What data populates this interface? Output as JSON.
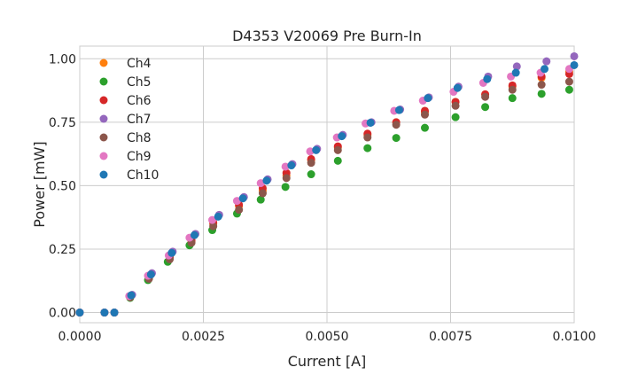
{
  "chart_data": {
    "type": "scatter",
    "title": "D4353 V20069 Pre Burn-In",
    "xlabel": "Current [A]",
    "ylabel": "Power [mW]",
    "xlim": [
      0,
      0.01
    ],
    "ylim": [
      -0.04,
      1.05
    ],
    "xticks": [
      0,
      0.0025,
      0.005,
      0.0075,
      0.01
    ],
    "xtick_labels": [
      "0.0000",
      "0.0025",
      "0.0050",
      "0.0075",
      "0.0100"
    ],
    "yticks": [
      0,
      0.25,
      0.5,
      0.75,
      1.0
    ],
    "ytick_labels": [
      "0.00",
      "0.25",
      "0.50",
      "0.75",
      "1.00"
    ],
    "grid": true,
    "legend_position": "top-left",
    "series": [
      {
        "name": "Ch4",
        "color": "#ff7f0e",
        "x": [
          0,
          0.0005,
          0.0007,
          0.00102,
          0.0014,
          0.00182,
          0.00226,
          0.0027,
          0.00322,
          0.0037,
          0.00418,
          0.00468,
          0.00522,
          0.00582,
          0.0064,
          0.00698,
          0.0076,
          0.0082,
          0.00875,
          0.00934,
          0.0099
        ],
        "y": [
          0,
          0,
          0,
          0.062,
          0.135,
          0.215,
          0.28,
          0.35,
          0.42,
          0.48,
          0.54,
          0.6,
          0.65,
          0.7,
          0.75,
          0.79,
          0.83,
          0.86,
          0.89,
          0.925,
          0.95
        ]
      },
      {
        "name": "Ch5",
        "color": "#2ca02c",
        "x": [
          0,
          0.0005,
          0.0007,
          0.00102,
          0.00138,
          0.00178,
          0.00222,
          0.00268,
          0.00318,
          0.00366,
          0.00416,
          0.00468,
          0.00522,
          0.00582,
          0.0064,
          0.00698,
          0.0076,
          0.0082,
          0.00875,
          0.00934,
          0.0099
        ],
        "y": [
          0,
          0,
          0,
          0.058,
          0.128,
          0.2,
          0.265,
          0.325,
          0.39,
          0.445,
          0.495,
          0.545,
          0.598,
          0.648,
          0.688,
          0.728,
          0.77,
          0.81,
          0.845,
          0.862,
          0.878
        ]
      },
      {
        "name": "Ch6",
        "color": "#d62728",
        "x": [
          0,
          0.0005,
          0.0007,
          0.00102,
          0.0014,
          0.00182,
          0.00226,
          0.0027,
          0.00322,
          0.0037,
          0.00418,
          0.00468,
          0.00522,
          0.00582,
          0.0064,
          0.00698,
          0.0076,
          0.0082,
          0.00875,
          0.00934,
          0.0099
        ],
        "y": [
          0,
          0,
          0,
          0.063,
          0.138,
          0.218,
          0.285,
          0.355,
          0.425,
          0.49,
          0.55,
          0.605,
          0.655,
          0.705,
          0.75,
          0.795,
          0.83,
          0.86,
          0.895,
          0.93,
          0.94
        ]
      },
      {
        "name": "Ch7",
        "color": "#9467bd",
        "x": [
          0,
          0.0005,
          0.0007,
          0.00106,
          0.00146,
          0.00188,
          0.00234,
          0.00282,
          0.00332,
          0.0038,
          0.0043,
          0.0048,
          0.00532,
          0.0059,
          0.00648,
          0.00706,
          0.00766,
          0.00826,
          0.00884,
          0.00944,
          0.01
        ],
        "y": [
          0,
          0,
          0,
          0.07,
          0.155,
          0.24,
          0.31,
          0.385,
          0.455,
          0.525,
          0.585,
          0.645,
          0.7,
          0.75,
          0.8,
          0.848,
          0.89,
          0.93,
          0.97,
          0.99,
          1.01
        ]
      },
      {
        "name": "Ch8",
        "color": "#8c564b",
        "x": [
          0,
          0.0005,
          0.0007,
          0.00102,
          0.0014,
          0.00182,
          0.00226,
          0.0027,
          0.00322,
          0.0037,
          0.00418,
          0.00468,
          0.00522,
          0.00582,
          0.0064,
          0.00698,
          0.0076,
          0.0082,
          0.00875,
          0.00934,
          0.0099
        ],
        "y": [
          0,
          0,
          0,
          0.06,
          0.133,
          0.21,
          0.275,
          0.34,
          0.405,
          0.47,
          0.53,
          0.59,
          0.64,
          0.69,
          0.74,
          0.78,
          0.815,
          0.85,
          0.878,
          0.898,
          0.91
        ]
      },
      {
        "name": "Ch9",
        "color": "#e377c2",
        "x": [
          0,
          0.0005,
          0.0007,
          0.001,
          0.00138,
          0.0018,
          0.00222,
          0.00268,
          0.00318,
          0.00366,
          0.00416,
          0.00466,
          0.0052,
          0.00578,
          0.00636,
          0.00694,
          0.00756,
          0.00816,
          0.00872,
          0.00932,
          0.0099
        ],
        "y": [
          0,
          0,
          0,
          0.065,
          0.145,
          0.225,
          0.295,
          0.365,
          0.44,
          0.51,
          0.575,
          0.635,
          0.69,
          0.745,
          0.795,
          0.835,
          0.87,
          0.905,
          0.93,
          0.945,
          0.96
        ]
      },
      {
        "name": "Ch10",
        "color": "#1f77b4",
        "x": [
          0,
          0.0005,
          0.0007,
          0.00104,
          0.00144,
          0.00186,
          0.00232,
          0.0028,
          0.0033,
          0.00378,
          0.00428,
          0.00478,
          0.0053,
          0.00588,
          0.00646,
          0.00704,
          0.00764,
          0.00824,
          0.00882,
          0.0094,
          0.01
        ],
        "y": [
          0,
          0,
          0,
          0.068,
          0.15,
          0.235,
          0.305,
          0.378,
          0.45,
          0.52,
          0.58,
          0.64,
          0.695,
          0.748,
          0.798,
          0.845,
          0.885,
          0.92,
          0.945,
          0.96,
          0.975
        ]
      }
    ]
  }
}
